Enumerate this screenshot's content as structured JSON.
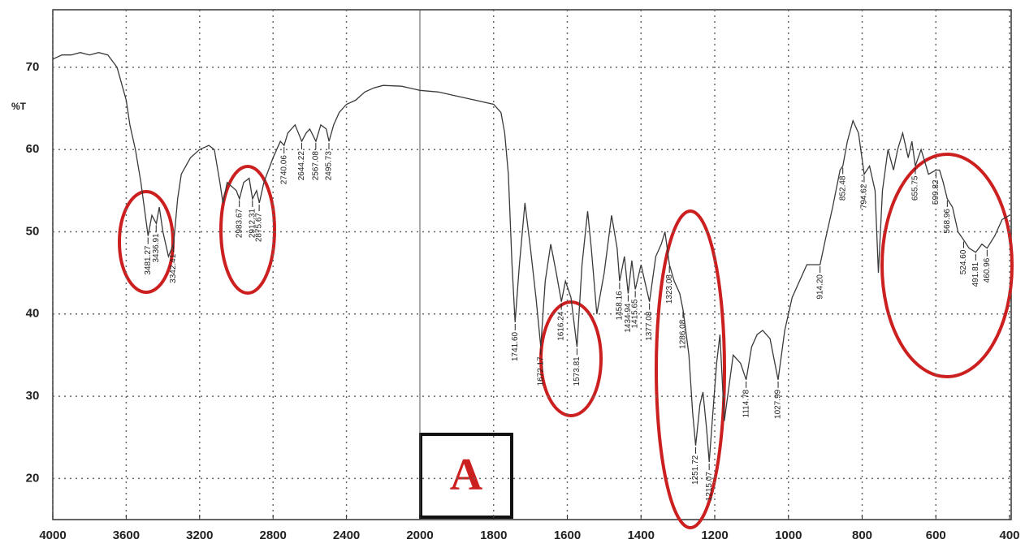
{
  "chart_data": {
    "type": "line",
    "y_label": "%T",
    "panel_label": "A",
    "color": "#3a3a3a",
    "grid": true,
    "xlim": [
      4000,
      400
    ],
    "x_scale_change_at": 2000,
    "ylim": [
      15,
      77
    ],
    "xticks": [
      4000,
      3600,
      3200,
      2800,
      2400,
      2000,
      1800,
      1600,
      1400,
      1200,
      1000,
      800,
      600,
      400
    ],
    "yticks": [
      20,
      30,
      40,
      50,
      60,
      70
    ],
    "x": [
      4000,
      3950,
      3900,
      3850,
      3800,
      3750,
      3700,
      3650,
      3600,
      3580,
      3550,
      3520,
      3481,
      3460,
      3436,
      3420,
      3400,
      3370,
      3342,
      3320,
      3300,
      3250,
      3200,
      3150,
      3120,
      3090,
      3073,
      3050,
      3000,
      2983,
      2960,
      2930,
      2912,
      2890,
      2875,
      2850,
      2800,
      2760,
      2740,
      2720,
      2680,
      2644,
      2620,
      2600,
      2567,
      2540,
      2510,
      2495,
      2470,
      2440,
      2400,
      2350,
      2300,
      2250,
      2200,
      2100,
      2000,
      1950,
      1900,
      1850,
      1800,
      1780,
      1770,
      1760,
      1750,
      1741.6,
      1730,
      1715,
      1700,
      1685,
      1672,
      1660,
      1645,
      1630,
      1616,
      1605,
      1590,
      1573.8,
      1560,
      1545,
      1535,
      1520,
      1500,
      1480,
      1465,
      1458,
      1445,
      1434.9,
      1425,
      1415.6,
      1400,
      1390,
      1377,
      1360,
      1345,
      1335,
      1323,
      1310,
      1295,
      1286,
      1270,
      1260,
      1251.7,
      1240,
      1232,
      1222,
      1215,
      1205,
      1195,
      1186,
      1174,
      1165,
      1150,
      1130,
      1114.8,
      1100,
      1085,
      1070,
      1050,
      1028,
      1010,
      990,
      950,
      914.2,
      900,
      880,
      860,
      852.5,
      840,
      825,
      810,
      794.6,
      780,
      765,
      756,
      745,
      730,
      715,
      703.8,
      690,
      675,
      665,
      655.8,
      640,
      620,
      600,
      590,
      580,
      569,
      555,
      540,
      524.6,
      510,
      491.8,
      475,
      461,
      440,
      420,
      400
    ],
    "values": [
      71,
      71.5,
      71.5,
      71.8,
      71.5,
      71.8,
      71.5,
      70,
      66,
      63,
      60,
      56,
      49.5,
      52,
      51,
      53,
      50,
      47,
      48.5,
      54,
      57,
      59,
      60,
      60.5,
      60,
      56,
      53.5,
      56,
      55,
      54,
      56,
      56.5,
      54,
      55,
      53.5,
      56,
      59,
      61,
      60.5,
      62,
      63,
      61,
      62,
      62.5,
      61,
      63,
      62.5,
      61,
      63,
      64.5,
      65.5,
      66,
      67,
      67.5,
      67.8,
      67.7,
      67.2,
      67,
      66.5,
      66,
      65.5,
      64.5,
      62,
      57,
      46,
      39,
      46,
      53.5,
      48,
      42,
      36,
      44,
      48.5,
      45,
      41.5,
      44,
      42,
      36,
      46,
      52.5,
      48,
      40,
      45,
      52,
      48,
      44,
      47,
      42.5,
      46.5,
      43,
      46,
      44,
      41.5,
      47,
      48.5,
      50,
      46,
      44,
      42.5,
      40.5,
      35,
      28,
      24,
      29,
      30.5,
      26,
      22,
      28,
      34,
      37.5,
      27,
      30,
      35,
      34,
      32,
      36,
      37.5,
      38,
      37,
      32,
      38,
      42,
      46,
      46,
      49,
      53,
      57.5,
      58,
      61,
      63.5,
      62,
      57,
      58,
      55,
      45,
      55,
      60,
      57.5,
      60,
      62,
      59,
      61,
      58,
      60,
      57,
      57.5,
      57.5,
      56,
      54,
      53,
      50,
      49,
      48,
      47.5,
      48.5,
      48,
      49.5,
      51.5,
      52
    ],
    "peaks": {
      "x": [
        3481.27,
        3436.91,
        3342.41,
        2983.67,
        2912.31,
        2875.67,
        2740.06,
        2644.22,
        2567.08,
        2495.73,
        {
          "value": 1741.6,
          "label": "1741.60"
        },
        1672.17,
        1616.24,
        1573.81,
        1458.16,
        1434.94,
        1415.65,
        1377.08,
        1323.08,
        1286.08,
        1251.72,
        1215.07,
        1114.78,
        1027.99,
        {
          "value": 914.2,
          "label": "914.20"
        },
        852.48,
        794.62,
        655.75,
        599.82,
        568.96,
        {
          "value": 524.6,
          "label": "524.60"
        },
        491.81,
        460.96
      ],
      "y": [
        49.5,
        51,
        48.5,
        54,
        54,
        53.5,
        60.5,
        61,
        61,
        61,
        39,
        36,
        41.5,
        36,
        44,
        42.5,
        43,
        41.5,
        46,
        40.5,
        24,
        22,
        32,
        32,
        46,
        58,
        57,
        58,
        57.5,
        54,
        49,
        47.5,
        48
      ]
    }
  }
}
